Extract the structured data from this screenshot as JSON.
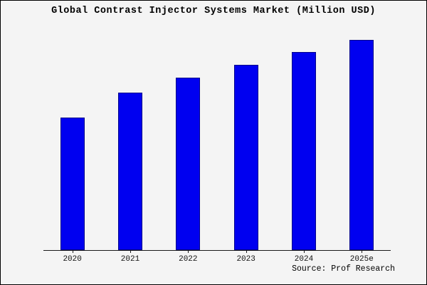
{
  "chart_data": {
    "type": "bar",
    "title": "Global Contrast Injector Systems Market (Million USD)",
    "categories": [
      "2020",
      "2021",
      "2022",
      "2023",
      "2024",
      "2025e"
    ],
    "values": [
      63,
      75,
      82,
      88,
      94,
      100
    ],
    "xlabel": "",
    "ylabel": "",
    "ylim": [
      0,
      105
    ],
    "grid": false,
    "legend": "none",
    "bar_color": "#0000f0",
    "bar_border_color": "#00008b"
  },
  "source": "Source: Prof Research",
  "colors": {
    "background": "#f4f4f4",
    "frame_border": "#000000",
    "axis": "#1a1a1a"
  }
}
